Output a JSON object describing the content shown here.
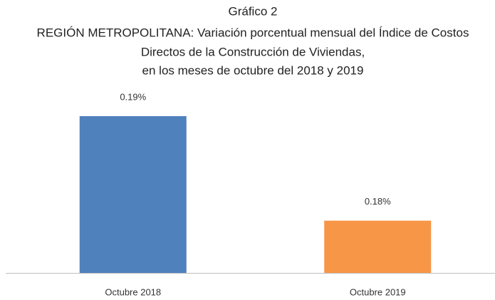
{
  "chart_data": {
    "type": "bar",
    "title_lines": [
      "Gráfico 2",
      "REGIÓN METROPOLITANA: Variación porcentual mensual del Índice de Costos",
      "Directos de la Construcción de Viviendas,",
      "en los meses de octubre del 2018 y 2019"
    ],
    "categories": [
      "Octubre 2018",
      "Octubre 2019"
    ],
    "values": [
      0.19,
      0.18
    ],
    "value_labels": [
      "0.19%",
      "0.18%"
    ],
    "colors": [
      "#4f81bd",
      "#f79646"
    ],
    "ylim": [
      0.175,
      0.19
    ]
  }
}
